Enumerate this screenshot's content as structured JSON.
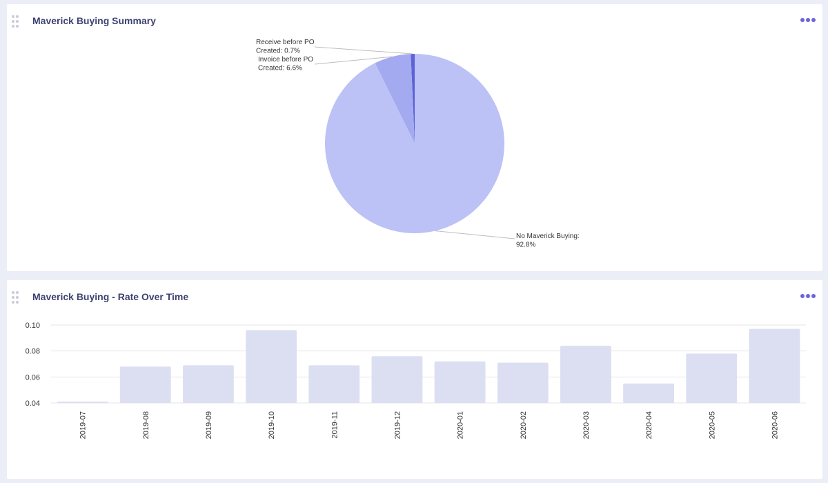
{
  "panels": {
    "summary": {
      "title": "Maverick Buying Summary"
    },
    "rate": {
      "title": "Maverick Buying - Rate Over Time"
    }
  },
  "icons": {
    "drag": "drag-handle-icon",
    "more": "more-options-icon"
  },
  "colors": {
    "pie_no_maverick": "#bcc2f5",
    "pie_invoice_before_po": "#a4aaef",
    "pie_receive_before_po": "#5b63d6",
    "bar_fill": "#dcdff2",
    "more_icon": "#6b63e0",
    "title": "#3d4270"
  },
  "chart_data": [
    {
      "type": "pie",
      "title": "Maverick Buying Summary",
      "slices": [
        {
          "label": "Receive before PO Created",
          "value": 0.7,
          "text_lines": [
            "Receive before PO",
            "Created: 0.7%"
          ]
        },
        {
          "label": "Invoice before PO Created",
          "value": 6.6,
          "text_lines": [
            "Invoice before PO",
            "Created: 6.6%"
          ]
        },
        {
          "label": "No Maverick Buying",
          "value": 92.8,
          "text_lines": [
            "No Maverick Buying:",
            "92.8%"
          ]
        }
      ]
    },
    {
      "type": "bar",
      "title": "Maverick Buying - Rate Over Time",
      "categories": [
        "2019-07",
        "2019-08",
        "2019-09",
        "2019-10",
        "2019-11",
        "2019-12",
        "2020-01",
        "2020-02",
        "2020-03",
        "2020-04",
        "2020-05",
        "2020-06"
      ],
      "values": [
        0.041,
        0.068,
        0.069,
        0.096,
        0.069,
        0.076,
        0.072,
        0.071,
        0.084,
        0.055,
        0.078,
        0.097
      ],
      "ylim": [
        0.04,
        0.1
      ],
      "yticks": [
        "0.10",
        "0.08",
        "0.06",
        "0.04"
      ],
      "ytick_values": [
        0.1,
        0.08,
        0.06,
        0.04
      ],
      "grid": true,
      "xlabel": "",
      "ylabel": ""
    }
  ]
}
